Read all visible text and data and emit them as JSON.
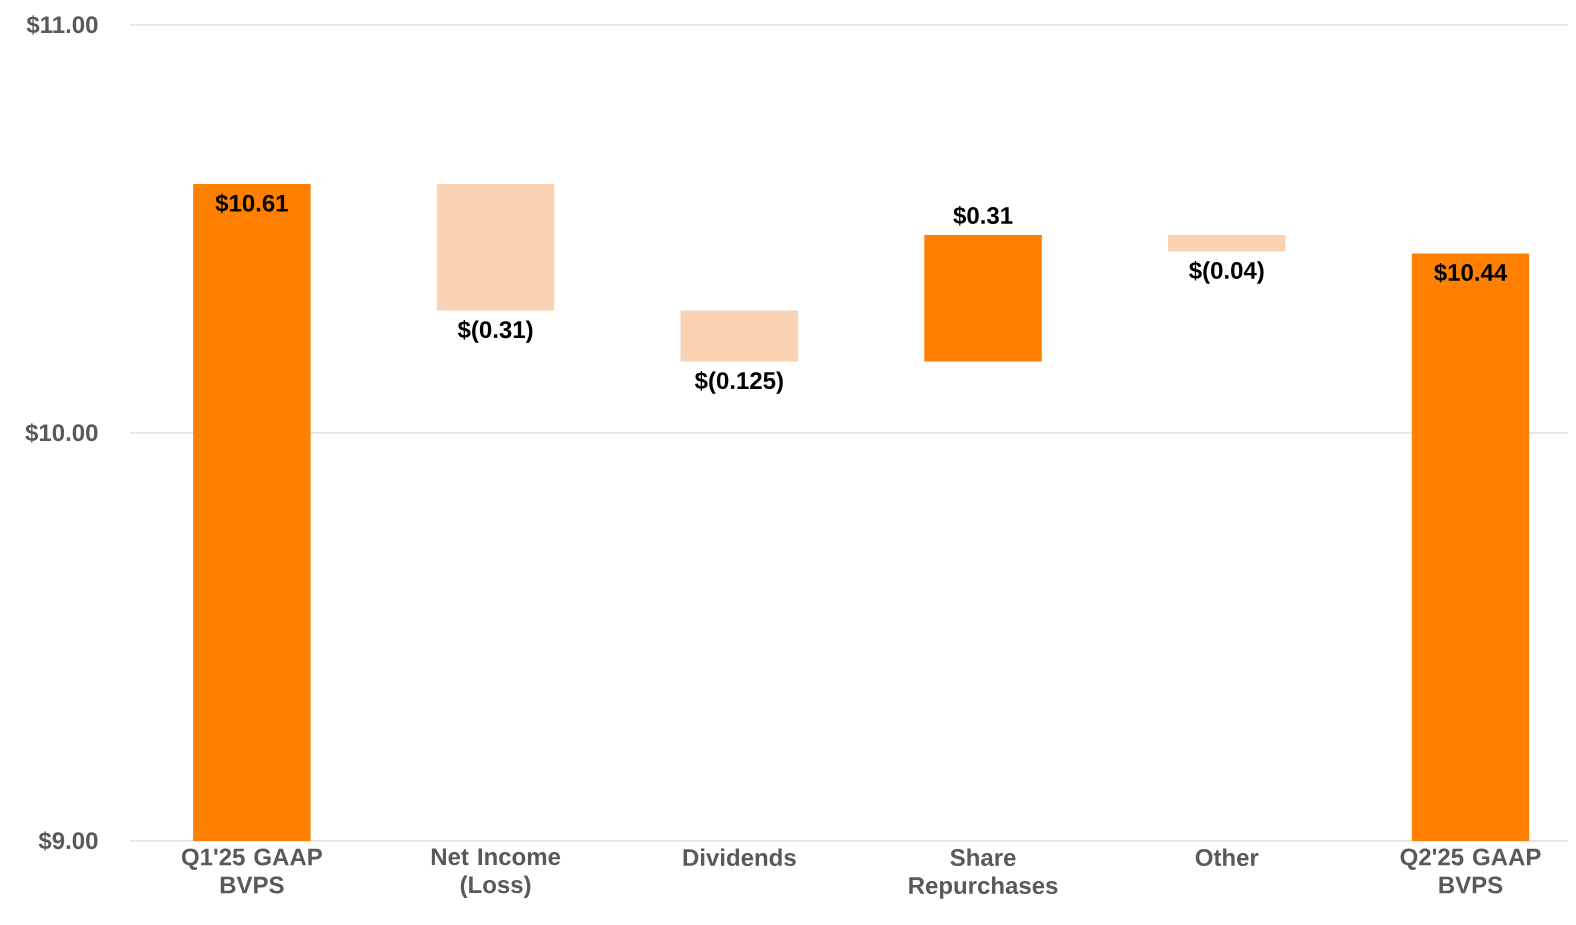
{
  "chart_data": {
    "type": "bar",
    "categories": [
      "Q1'25 GAAP BVPS",
      "Net Income (Loss)",
      "Dividends",
      "Share Repurchases",
      "Other",
      "Q2'25 GAAP BVPS"
    ],
    "values": [
      10.61,
      -0.31,
      -0.125,
      0.31,
      -0.04,
      10.44
    ],
    "base": [
      null,
      10.61,
      10.3,
      10.175,
      10.485,
      null
    ],
    "colors": [
      "#ff8000",
      "#f9d3b3",
      "#f9d3b3",
      "#ff8000",
      "#f9d3b3",
      "#ff8000"
    ],
    "value_labels": [
      "$10.61",
      "$(0.31)",
      "$(0.125)",
      "$0.31",
      "$(0.04)",
      "$10.44"
    ],
    "ylim": [
      9,
      11
    ],
    "yticks": [
      {
        "value": 9,
        "label": "$9.00"
      },
      {
        "value": 10,
        "label": "$10.00"
      },
      {
        "value": 11,
        "label": "$11.00"
      }
    ],
    "grid": "y"
  }
}
